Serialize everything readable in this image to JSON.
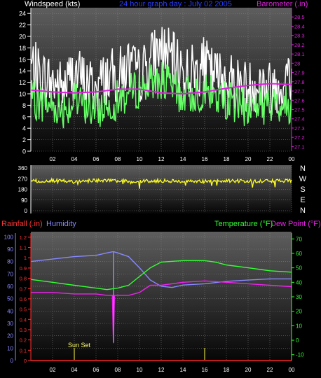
{
  "chart_data": [
    {
      "type": "line",
      "title": "24 hour graph day : July 02 2005",
      "ylabel_left": "Windspeed (kts)",
      "ylabel_right": "Barometer (.in)",
      "ylim_left": [
        0,
        25
      ],
      "ylim_right": [
        27.05,
        28.6
      ],
      "x_ticks": [
        "02",
        "04",
        "06",
        "08",
        "10",
        "12",
        "14",
        "16",
        "18",
        "20",
        "22",
        "00"
      ],
      "y_ticks_left": [
        "0",
        "2",
        "4",
        "6",
        "8",
        "10",
        "12",
        "14",
        "16",
        "18",
        "20",
        "22",
        "24"
      ],
      "y_ticks_right": [
        "27.1",
        "27.2",
        "27.3",
        "27.4",
        "27.5",
        "27.6",
        "27.7",
        "27.8",
        "27.9",
        "28",
        "28.1",
        "28.2",
        "28.3",
        "28.4",
        "28.5"
      ],
      "grid": true,
      "series": [
        {
          "color": "#ffffff",
          "x": [
            0,
            1,
            2,
            3,
            4,
            5,
            6,
            7,
            8,
            9,
            10,
            11,
            12,
            13,
            14,
            15,
            16,
            17,
            18,
            19,
            20,
            21,
            22,
            23,
            24
          ],
          "values": [
            16,
            14,
            13,
            12,
            15,
            13,
            12,
            14,
            14,
            16,
            14,
            17,
            19,
            17,
            15,
            15,
            16,
            14,
            14,
            13,
            12,
            13,
            12,
            13,
            14
          ]
        },
        {
          "color": "#66ff66",
          "x": [
            0,
            1,
            2,
            3,
            4,
            5,
            6,
            7,
            8,
            9,
            10,
            11,
            12,
            13,
            14,
            15,
            16,
            17,
            18,
            19,
            20,
            21,
            22,
            23,
            24
          ],
          "values": [
            9,
            8.5,
            8,
            7.5,
            8.5,
            8,
            7,
            8,
            9,
            10,
            11,
            12,
            12.5,
            11,
            9.5,
            10,
            10.5,
            9.5,
            9,
            8,
            7.5,
            8.5,
            7.5,
            8.5,
            8
          ]
        },
        {
          "color": "#dd22dd",
          "axis": "right",
          "x": [
            0,
            2,
            4,
            6,
            8,
            10,
            12,
            14,
            16,
            18,
            20,
            22,
            24
          ],
          "values": [
            27.71,
            27.69,
            27.68,
            27.69,
            27.72,
            27.72,
            27.68,
            27.67,
            27.69,
            27.73,
            27.76,
            27.78,
            27.77
          ]
        }
      ]
    },
    {
      "type": "line",
      "ylim": [
        0,
        360
      ],
      "y_ticks": [
        "0",
        "90",
        "180",
        "270",
        "360"
      ],
      "compass": [
        "N",
        "W",
        "S",
        "E",
        "N"
      ],
      "grid": true,
      "series": [
        {
          "color": "#ffff22",
          "x": [
            0,
            2,
            4,
            6,
            8,
            10,
            12,
            14,
            16,
            18,
            20,
            22,
            24
          ],
          "values": [
            250,
            255,
            245,
            255,
            250,
            248,
            252,
            250,
            246,
            252,
            250,
            248,
            252
          ]
        }
      ]
    },
    {
      "type": "line",
      "labels": {
        "rainfall": "Rainfall (.in)",
        "humidity": "Humidity",
        "temperature": "Temperature (°F)",
        "dew_point": "Dew Point (°F)"
      },
      "annotation": "Sun Set",
      "x_ticks": [
        "02",
        "04",
        "06",
        "08",
        "10",
        "12",
        "14",
        "16",
        "18",
        "20",
        "22",
        "00"
      ],
      "y_ticks_rain": [
        "0",
        "0.1",
        "0.2",
        "0.3",
        "0.4",
        "0.5",
        "0.6",
        "0.7",
        "0.8",
        "0.9",
        "1",
        "1.1",
        "1.2"
      ],
      "y_ticks_humidity": [
        "0",
        "10",
        "20",
        "30",
        "40",
        "50",
        "60",
        "70",
        "80",
        "90",
        "100"
      ],
      "y_ticks_temp": [
        "-10",
        "0",
        "10",
        "20",
        "30",
        "40",
        "50",
        "60",
        "70"
      ],
      "ylim_rain": [
        0,
        1.24
      ],
      "ylim_humidity": [
        0,
        103
      ],
      "ylim_temp": [
        -14,
        74
      ],
      "grid": true,
      "series": [
        {
          "name": "Humidity",
          "color": "#8888ff",
          "x": [
            0,
            2,
            4,
            6,
            7,
            7.6,
            8,
            9,
            10,
            11,
            12,
            13,
            14,
            16,
            18,
            20,
            22,
            24
          ],
          "values": [
            80,
            82,
            84,
            85,
            87,
            88,
            87,
            84,
            75,
            65,
            60,
            59,
            61,
            62,
            64,
            65,
            66,
            66
          ]
        },
        {
          "name": "Temperature (°F)",
          "color": "#33ff33",
          "x": [
            0,
            2,
            4,
            6,
            7,
            8,
            9,
            10,
            11,
            12,
            14,
            16,
            17,
            18,
            20,
            22,
            24
          ],
          "values": [
            42,
            40,
            38,
            36,
            35,
            36,
            38,
            44,
            50,
            54,
            55,
            55,
            54,
            52,
            50,
            48,
            47
          ]
        },
        {
          "name": "Dew Point (°F)",
          "color": "#ee22ee",
          "x": [
            0,
            2,
            4,
            6,
            7,
            7.5,
            7.6,
            7.7,
            8,
            9,
            10,
            11,
            12,
            14,
            16,
            18,
            20,
            22,
            24
          ],
          "values": [
            33,
            33,
            32,
            32,
            31,
            31,
            -2,
            31,
            31,
            31,
            33,
            38,
            38,
            40,
            41,
            40,
            39,
            38,
            37
          ]
        },
        {
          "name": "Rainfall (.in)",
          "color": "#ff2222",
          "x": [
            0,
            24
          ],
          "values": [
            0,
            0
          ]
        }
      ]
    }
  ]
}
